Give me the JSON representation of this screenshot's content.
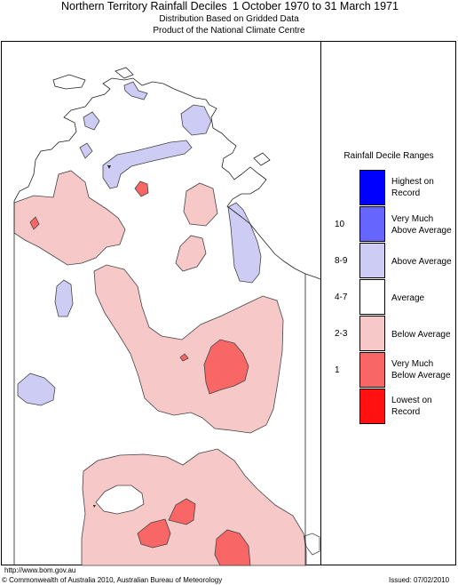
{
  "header": {
    "title": "Northern Territory Rainfall Deciles",
    "period": "1 October 1970 to 31 March 1971",
    "subtitle1": "Distribution Based on Gridded Data",
    "subtitle2": "Product of the National Climate Centre"
  },
  "legend": {
    "title": "Rainfall Decile Ranges",
    "items": [
      {
        "label_line1": "Highest on",
        "label_line2": "Record",
        "decile": "",
        "color": "#0000ff"
      },
      {
        "label_line1": "Very Much",
        "label_line2": "Above Average",
        "decile": "10",
        "color": "#6666ff"
      },
      {
        "label_line1": "Above Average",
        "label_line2": "",
        "decile": "8-9",
        "color": "#ccccf5"
      },
      {
        "label_line1": "Average",
        "label_line2": "",
        "decile": "4-7",
        "color": "#ffffff"
      },
      {
        "label_line1": "Below Average",
        "label_line2": "",
        "decile": "2-3",
        "color": "#f7c8c8"
      },
      {
        "label_line1": "Very Much",
        "label_line2": "Below Average",
        "decile": "1",
        "color": "#f86666"
      },
      {
        "label_line1": "Lowest on",
        "label_line2": "Record",
        "decile": "",
        "color": "#ff1111"
      }
    ]
  },
  "footer": {
    "url": "http://www.bom.gov.au",
    "copyright": "© Commonwealth of Australia 2010, Australian Bureau of Meteorology",
    "issued": "Issued: 07/02/2010"
  }
}
